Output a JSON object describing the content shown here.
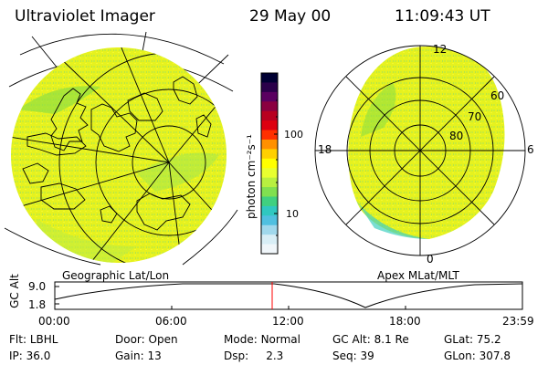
{
  "header": {
    "title": "Ultraviolet Imager",
    "date": "29 May 00",
    "time": "11:09:43 UT"
  },
  "geo_panel": {
    "caption": "Geographic Lat/Lon"
  },
  "apex_panel": {
    "caption": "Apex MLat/MLT",
    "mlt_labels": {
      "top": "12",
      "left": "18",
      "right": "6",
      "bottom": "0"
    },
    "lat_labels": [
      "60",
      "70",
      "80"
    ]
  },
  "colorbar": {
    "unit_label": "photon cm⁻²s⁻¹",
    "ticks": [
      "100",
      "10"
    ],
    "colors": [
      "#000033",
      "#2a004a",
      "#5a0060",
      "#8a0040",
      "#b80020",
      "#dd0010",
      "#ff3000",
      "#ff9000",
      "#ffd000",
      "#ffff00",
      "#e8ff30",
      "#b8f040",
      "#80e050",
      "#40d080",
      "#30c8c0",
      "#50c0e0",
      "#a0d8ec",
      "#d8eef6",
      "#f0f6fa"
    ]
  },
  "altitude_strip": {
    "axis_label": "GC Alt",
    "ticks": [
      "9.0",
      "1.8"
    ],
    "time_labels": [
      "00:00",
      "06:00",
      "12:00",
      "18:00",
      "23:59"
    ]
  },
  "info": {
    "row1": [
      {
        "key": "Flt:",
        "value": "LBHL"
      },
      {
        "key": "Door:",
        "value": "Open"
      },
      {
        "key": "Mode:",
        "value": "Normal"
      },
      {
        "key": "GC Alt:",
        "value": "8.1 Re"
      },
      {
        "key": "GLat:",
        "value": "75.2"
      }
    ],
    "row2": [
      {
        "key": "IP:",
        "value": "36.0"
      },
      {
        "key": "Gain:",
        "value": "13"
      },
      {
        "key": "Dsp:",
        "value": "2.3"
      },
      {
        "key": "Seq:",
        "value": "39"
      },
      {
        "key": "GLon:",
        "value": "307.8"
      }
    ]
  },
  "colors": {
    "marker": "#ff0000",
    "aurora_main": "#e0f020",
    "aurora_green": "#90e040"
  }
}
